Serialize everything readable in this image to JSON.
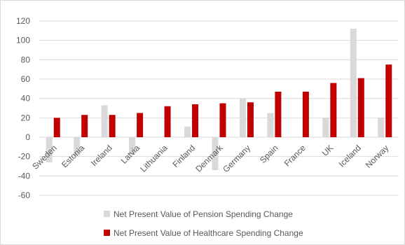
{
  "chart_data": {
    "type": "bar",
    "categories": [
      "Sweden",
      "Estonia",
      "Ireland",
      "Latvia",
      "Lithuania",
      "Finland",
      "Denmark",
      "Germany",
      "Spain",
      "France",
      "UK",
      "Iceland",
      "Norway"
    ],
    "series": [
      {
        "name": "Net Present Value of Pension Spending Change",
        "color": "#d9d9d9",
        "values": [
          -26,
          -19,
          33,
          -18,
          0,
          11,
          -34,
          40,
          25,
          0,
          20,
          112,
          20
        ]
      },
      {
        "name": "Net Present Value of Healthcare Spending Change",
        "color": "#c00000",
        "values": [
          20,
          23,
          23,
          25,
          32,
          34,
          35,
          36,
          47,
          47,
          56,
          61,
          75
        ]
      }
    ],
    "ylim": [
      -60,
      120
    ],
    "yticks": [
      -60,
      -40,
      -20,
      0,
      20,
      40,
      60,
      80,
      100,
      120
    ],
    "grid": true,
    "legend_position": "bottom",
    "title": "",
    "xlabel": "",
    "ylabel": ""
  }
}
